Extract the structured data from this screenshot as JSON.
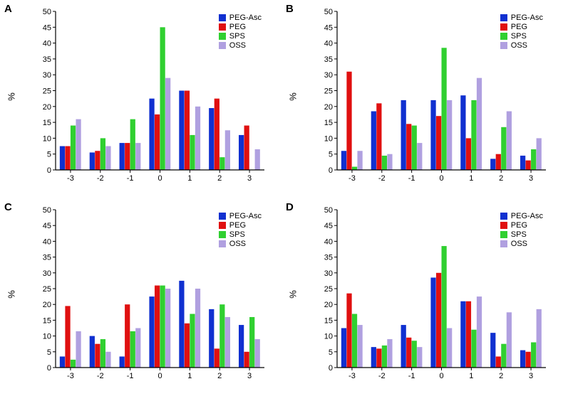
{
  "global": {
    "series_names": [
      "PEG-Asc",
      "PEG",
      "SPS",
      "OSS"
    ],
    "series_colors": [
      "#1030d0",
      "#e01010",
      "#30d030",
      "#b0a0e0"
    ],
    "categories": [
      "-3",
      "-2",
      "-1",
      "0",
      "1",
      "2",
      "3"
    ],
    "ylabel": "%",
    "background_color": "#ffffff",
    "axis_color": "#000000",
    "tick_fontsize": 11,
    "label_fontsize": 13,
    "panel_label_fontsize": 15,
    "bar_group_width": 0.72,
    "bar_gap": 0.0
  },
  "panels": [
    {
      "id": "A",
      "ylim": [
        0,
        50
      ],
      "ytick_step": 5,
      "data": {
        "PEG-Asc": [
          7.5,
          5.5,
          8.5,
          22.5,
          25.0,
          19.5,
          11.0
        ],
        "PEG": [
          7.5,
          6.0,
          8.5,
          17.5,
          25.0,
          22.5,
          14.0
        ],
        "SPS": [
          14.0,
          10.0,
          16.0,
          45.0,
          11.0,
          4.0,
          0.0
        ],
        "OSS": [
          16.0,
          7.5,
          8.5,
          29.0,
          20.0,
          12.5,
          6.5
        ]
      }
    },
    {
      "id": "B",
      "ylim": [
        0,
        50
      ],
      "ytick_step": 5,
      "data": {
        "PEG-Asc": [
          6.0,
          18.5,
          22.0,
          22.0,
          23.5,
          3.5,
          4.5
        ],
        "PEG": [
          31.0,
          21.0,
          14.5,
          17.0,
          10.0,
          5.0,
          3.0
        ],
        "SPS": [
          1.0,
          4.5,
          14.0,
          38.5,
          22.0,
          13.5,
          6.5
        ],
        "OSS": [
          6.0,
          5.0,
          8.5,
          22.0,
          29.0,
          18.5,
          10.0
        ]
      }
    },
    {
      "id": "C",
      "ylim": [
        0,
        50
      ],
      "ytick_step": 5,
      "data": {
        "PEG-Asc": [
          3.5,
          10.0,
          3.5,
          22.5,
          27.5,
          18.5,
          13.5
        ],
        "PEG": [
          19.5,
          7.5,
          20.0,
          26.0,
          14.0,
          6.0,
          5.0
        ],
        "SPS": [
          2.5,
          9.0,
          11.5,
          26.0,
          17.0,
          20.0,
          16.0
        ],
        "OSS": [
          11.5,
          5.0,
          12.5,
          25.0,
          25.0,
          16.0,
          9.0
        ]
      }
    },
    {
      "id": "D",
      "ylim": [
        0,
        50
      ],
      "ytick_step": 5,
      "data": {
        "PEG-Asc": [
          12.5,
          6.5,
          13.5,
          28.5,
          21.0,
          11.0,
          5.5
        ],
        "PEG": [
          23.5,
          6.0,
          9.5,
          30.0,
          21.0,
          3.5,
          5.0
        ],
        "SPS": [
          17.0,
          7.0,
          8.5,
          38.5,
          12.0,
          7.5,
          8.0
        ],
        "OSS": [
          13.5,
          9.0,
          6.5,
          12.5,
          22.5,
          17.5,
          18.5
        ]
      }
    }
  ]
}
